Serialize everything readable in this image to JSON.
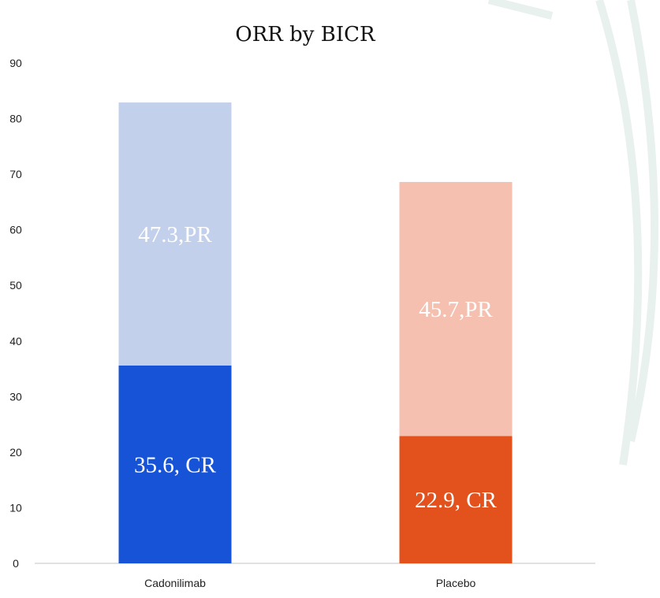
{
  "chart_data": {
    "type": "bar",
    "stacked": true,
    "title": "ORR by BICR",
    "categories": [
      "Cadonilimab",
      "Placebo"
    ],
    "ylim": [
      0,
      90
    ],
    "yticks": [
      "0",
      "10",
      "20",
      "30",
      "40",
      "50",
      "60",
      "70",
      "80",
      "90"
    ],
    "grid": false,
    "series": [
      {
        "values": [
          35.6,
          22.9
        ],
        "labels": [
          "35.6, CR",
          "22.9, CR"
        ],
        "colors": [
          "#1753d6",
          "#e3511d"
        ]
      },
      {
        "values": [
          47.3,
          45.7
        ],
        "labels": [
          "47.3,PR",
          "45.7,PR"
        ],
        "colors": [
          "#c3d0ec",
          "#f5c0b0"
        ]
      }
    ]
  }
}
